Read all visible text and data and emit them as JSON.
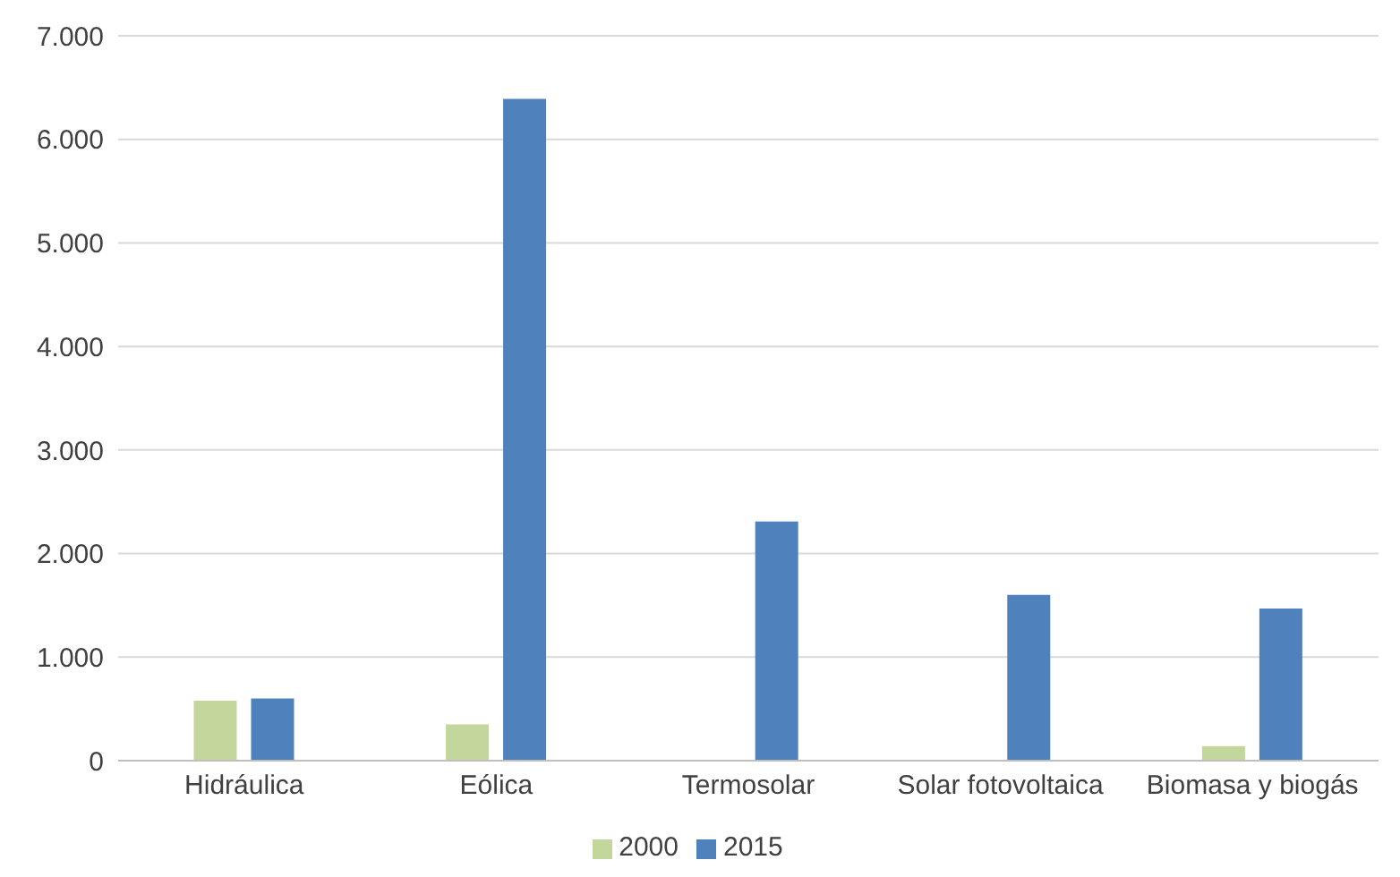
{
  "chart_data": {
    "type": "bar",
    "categories": [
      "Hidráulica",
      "Eólica",
      "Termosolar",
      "Solar fotovoltaica",
      "Biomasa y biogás"
    ],
    "series": [
      {
        "name": "2000",
        "color": "#c3d69b",
        "values": [
          580,
          350,
          null,
          null,
          140
        ]
      },
      {
        "name": "2015",
        "color": "#4f81bd",
        "values": [
          600,
          6390,
          2310,
          1600,
          1470
        ]
      }
    ],
    "ylim": [
      0,
      7000
    ],
    "yticks": [
      {
        "value": 0,
        "label": "0"
      },
      {
        "value": 1000,
        "label": "1.000"
      },
      {
        "value": 2000,
        "label": "2.000"
      },
      {
        "value": 3000,
        "label": "3.000"
      },
      {
        "value": 4000,
        "label": "4.000"
      },
      {
        "value": 5000,
        "label": "5.000"
      },
      {
        "value": 6000,
        "label": "6.000"
      },
      {
        "value": 7000,
        "label": "7.000"
      }
    ],
    "grid": "y",
    "legend": "bottom"
  }
}
